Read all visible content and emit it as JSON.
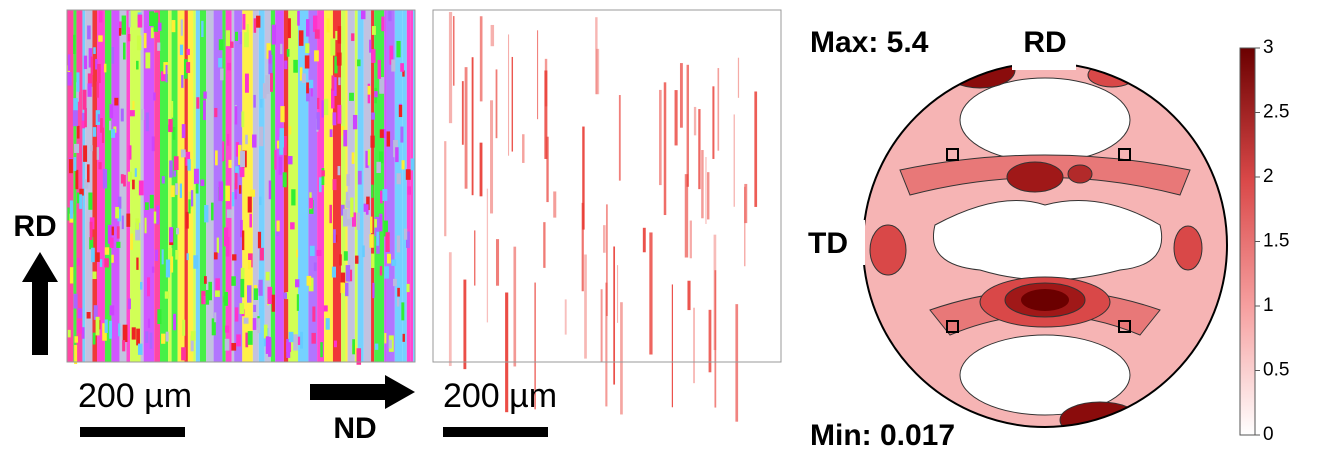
{
  "left_map": {
    "direction_label": "RD",
    "scale_label": "200 µm"
  },
  "right_map": {
    "direction_label": "ND",
    "scale_label": "200 µm"
  },
  "pole_figure": {
    "max_label": "Max: 5.4",
    "min_label": "Min: 0.017",
    "top_label": "RD",
    "left_label": "TD"
  },
  "colorbar": {
    "lim": [
      0,
      3
    ],
    "ticks": [
      0,
      0.5,
      1,
      1.5,
      2,
      2.5,
      3
    ],
    "color_low": "#ffffff",
    "color_high": "#6b0000"
  }
}
